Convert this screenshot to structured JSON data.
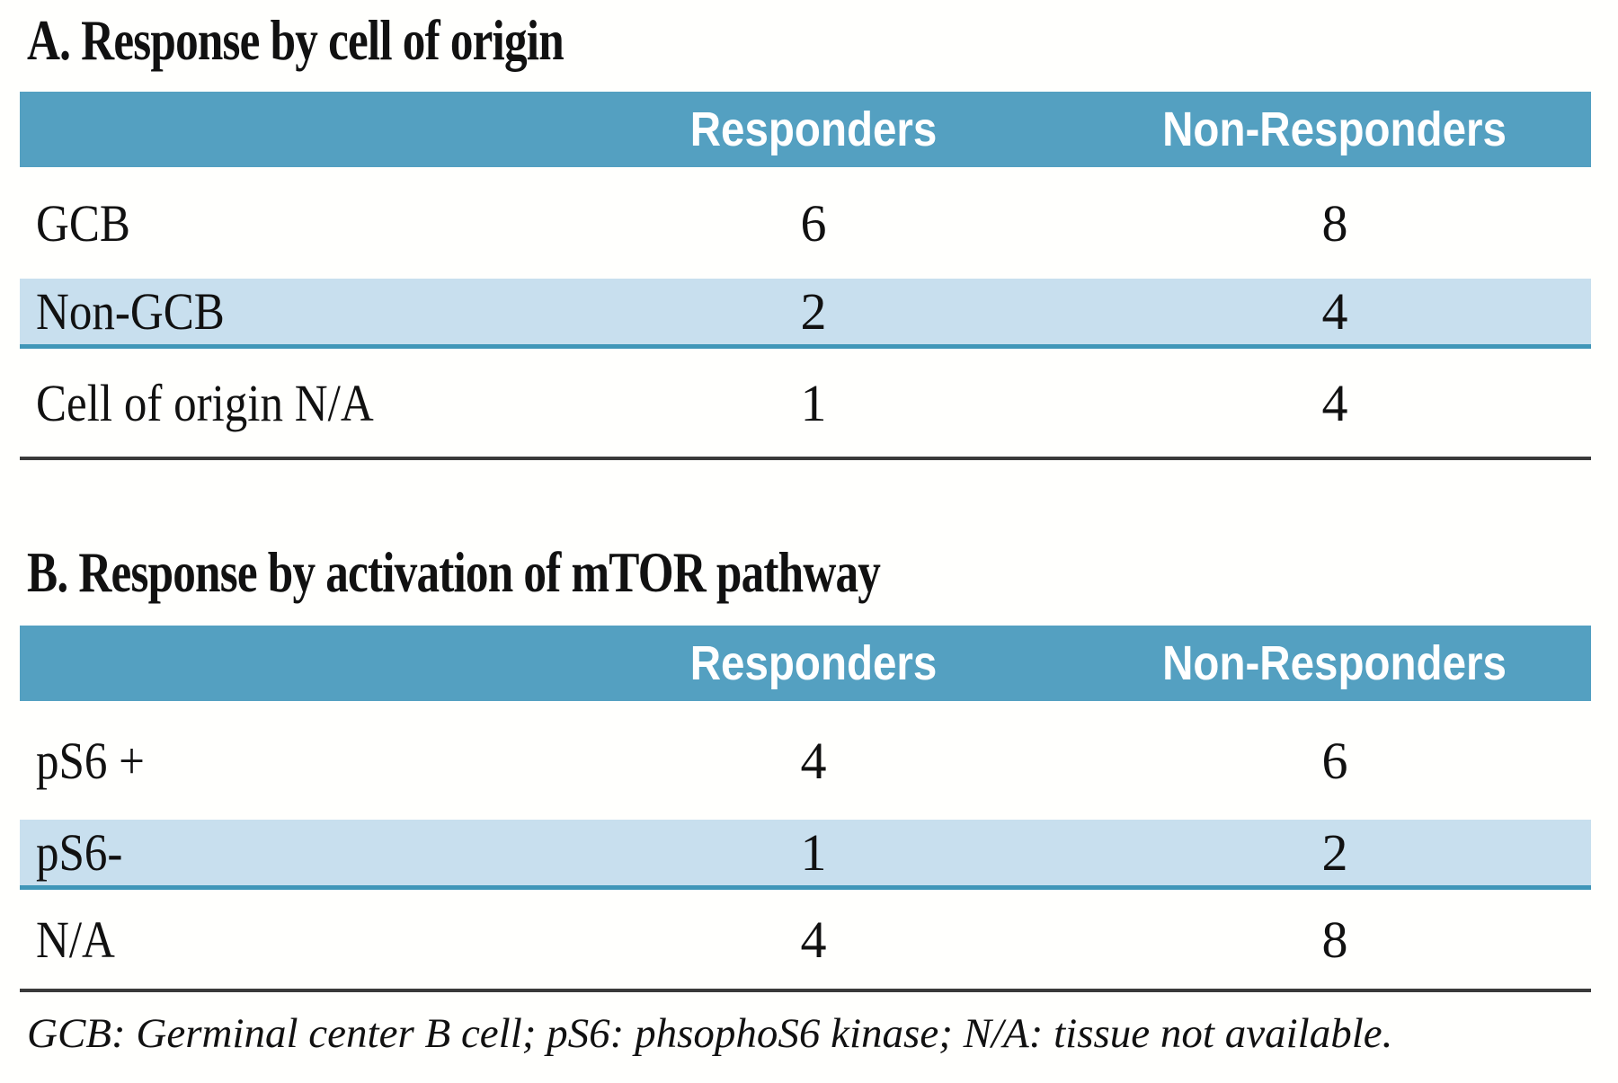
{
  "figure": {
    "sections": [
      {
        "id": "A",
        "title": "A. Response by cell of origin",
        "columns": [
          "Responders",
          "Non-Responders"
        ],
        "rows": [
          {
            "label": "GCB",
            "responders": "6",
            "non_responders": "8"
          },
          {
            "label": "Non-GCB",
            "responders": "2",
            "non_responders": "4"
          },
          {
            "label": "Cell of origin N/A",
            "responders": "1",
            "non_responders": "4"
          }
        ]
      },
      {
        "id": "B",
        "title": "B. Response by activation of mTOR pathway",
        "columns": [
          "Responders",
          "Non-Responders"
        ],
        "rows": [
          {
            "label": "pS6 +",
            "responders": "4",
            "non_responders": "6"
          },
          {
            "label": "pS6-",
            "responders": "1",
            "non_responders": "2"
          },
          {
            "label": "N/A",
            "responders": "4",
            "non_responders": "8"
          }
        ]
      }
    ],
    "footnote": "GCB: Germinal center B cell; pS6: phsophoS6 kinase; N/A: tissue not available.",
    "colors": {
      "header_bg": "#54a0c1",
      "stripe_bg": "#c8dfee",
      "stripe_border": "#4096b8",
      "rule": "#3a3a3a",
      "header_text": "#ffffff",
      "text": "#111111"
    }
  }
}
